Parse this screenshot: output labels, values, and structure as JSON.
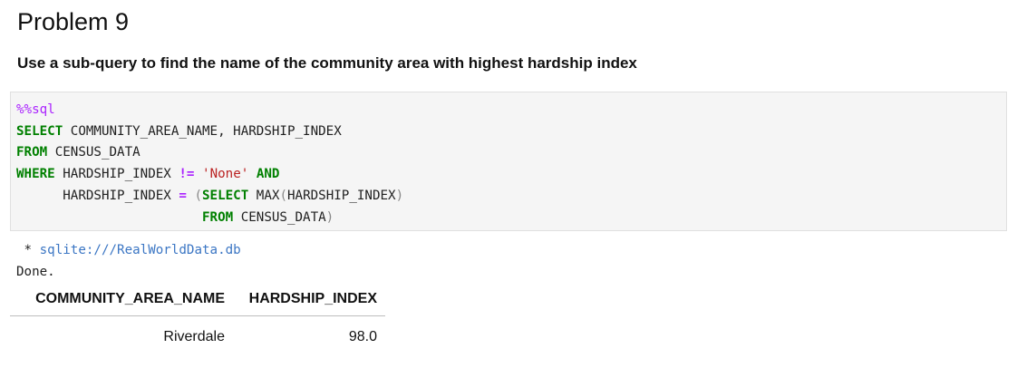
{
  "heading": "Problem 9",
  "subheading": "Use a sub-query to find the name of the community area with highest hardship index",
  "code": {
    "magic": "%%sql",
    "line2": {
      "kw": "SELECT",
      "rest": " COMMUNITY_AREA_NAME, HARDSHIP_INDEX"
    },
    "line3": {
      "kw": "FROM",
      "rest": " CENSUS_DATA"
    },
    "line4": {
      "kw": "WHERE",
      "col": " HARDSHIP_INDEX ",
      "op": "!=",
      "sp": " ",
      "str": "'None'",
      "sp2": " ",
      "kw2": "AND"
    },
    "line5": {
      "indent": "      HARDSHIP_INDEX ",
      "op": "=",
      "sp": " ",
      "lparen": "(",
      "kw": "SELECT",
      "fn": " MAX",
      "lparen2": "(",
      "arg": "HARDSHIP_INDEX",
      "rparen2": ")"
    },
    "line6": {
      "indent": "                        ",
      "kw": "FROM",
      "rest": " CENSUS_DATA",
      "rparen": ")"
    }
  },
  "output": {
    "prefix": " * ",
    "connection": "sqlite:///RealWorldData.db",
    "status": "Done."
  },
  "table": {
    "columns": [
      "COMMUNITY_AREA_NAME",
      "HARDSHIP_INDEX"
    ],
    "rows": [
      [
        "Riverdale",
        "98.0"
      ]
    ]
  }
}
